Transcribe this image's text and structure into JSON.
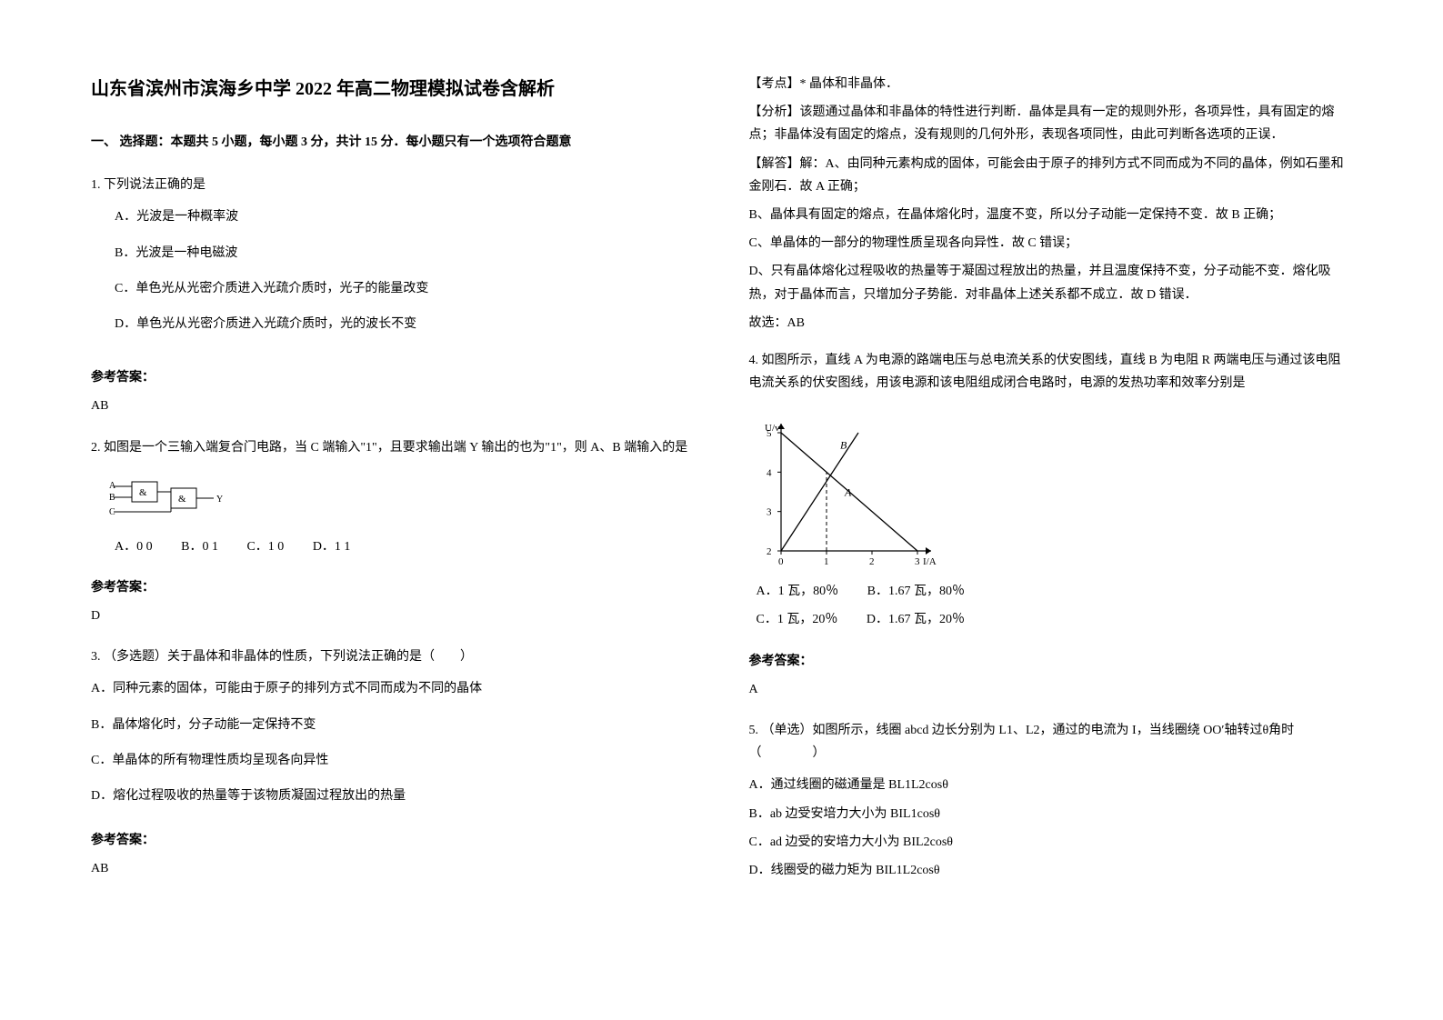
{
  "title": "山东省滨州市滨海乡中学 2022 年高二物理模拟试卷含解析",
  "section1_header": "一、 选择题：本题共 5 小题，每小题 3 分，共计 15 分．每小题只有一个选项符合题意",
  "q1": {
    "stem": "1. 下列说法正确的是",
    "A": "A．光波是一种概率波",
    "B": "B．光波是一种电磁波",
    "C": "C．单色光从光密介质进入光疏介质时，光子的能量改变",
    "D": "D．单色光从光密介质进入光疏介质时，光的波长不变",
    "answer_label": "参考答案：",
    "answer": "AB"
  },
  "q2": {
    "stem": "2. 如图是一个三输入端复合门电路，当 C 端输入\"1\"，且要求输出端 Y 输出的也为\"1\"，则 A、B 端输入的是",
    "A": "A．0 0",
    "B": "B．0 1",
    "C": "C．1 0",
    "D": "D．1 1",
    "answer_label": "参考答案：",
    "answer": "D"
  },
  "q3": {
    "stem": "3. （多选题）关于晶体和非晶体的性质，下列说法正确的是（　　）",
    "A": "A．同种元素的固体，可能由于原子的排列方式不同而成为不同的晶体",
    "B": "B．晶体熔化时，分子动能一定保持不变",
    "C": "C．单晶体的所有物理性质均呈现各向异性",
    "D": "D．熔化过程吸收的热量等于该物质凝固过程放出的热量",
    "answer_label": "参考答案：",
    "answer": "AB",
    "exp_point_label": "【考点】",
    "exp_point": "* 晶体和非晶体．",
    "exp_analysis_label": "【分析】",
    "exp_analysis": "该题通过晶体和非晶体的特性进行判断．晶体是具有一定的规则外形，各项异性，具有固定的熔点；非晶体没有固定的熔点，没有规则的几何外形，表现各项同性，由此可判断各选项的正误．",
    "exp_answer_label": "【解答】",
    "exp_A": "解：A、由同种元素构成的固体，可能会由于原子的排列方式不同而成为不同的晶体，例如石墨和金刚石．故 A 正确；",
    "exp_B": "B、晶体具有固定的熔点，在晶体熔化时，温度不变，所以分子动能一定保持不变．故 B 正确；",
    "exp_C": "C、单晶体的一部分的物理性质呈现各向异性．故 C 错误；",
    "exp_D": "D、只有晶体熔化过程吸收的热量等于凝固过程放出的热量，并且温度保持不变，分子动能不变．熔化吸热，对于晶体而言，只增加分子势能．对非晶体上述关系都不成立．故 D 错误．",
    "exp_sel": "故选：AB"
  },
  "q4": {
    "stem": "4. 如图所示，直线 A 为电源的路端电压与总电流关系的伏安图线，直线 B 为电阻 R 两端电压与通过该电阻电流关系的伏安图线，用该电源和该电阻组成闭合电路时，电源的发热功率和效率分别是",
    "A": "A．1 瓦，80％",
    "B": "B．1.67 瓦，80％",
    "C": "C．1 瓦，20％",
    "D": "D．1.67 瓦，20％",
    "answer_label": "参考答案：",
    "answer": "A",
    "graph": {
      "y_label": "U/v",
      "x_label": "I/A",
      "x_range": [
        0,
        3
      ],
      "y_range": [
        2,
        5
      ],
      "x_ticks": [
        0,
        1,
        2,
        3
      ],
      "y_ticks": [
        2,
        3,
        4,
        5
      ],
      "line_A": {
        "label": "A",
        "points": [
          [
            0,
            5
          ],
          [
            3,
            2
          ]
        ]
      },
      "line_B": {
        "label": "B",
        "points": [
          [
            0,
            2
          ],
          [
            1.7,
            5
          ]
        ]
      },
      "dashed_v": [
        [
          1,
          2
        ],
        [
          1,
          4
        ]
      ],
      "axis_color": "#000000",
      "line_color": "#000000",
      "dash_color": "#000000"
    }
  },
  "q5": {
    "stem": "5. （单选）如图所示，线圈 abcd 边长分别为 L1、L2，通过的电流为 I，当线圈绕 OO′轴转过θ角时（　　　　）",
    "A": "A．通过线圈的磁通量是 BL1L2cosθ",
    "B": "B．ab 边受安培力大小为 BIL1cosθ",
    "C": "C．ad 边受的安培力大小为 BIL2cosθ",
    "D": "D．线圈受的磁力矩为 BIL1L2cosθ"
  }
}
